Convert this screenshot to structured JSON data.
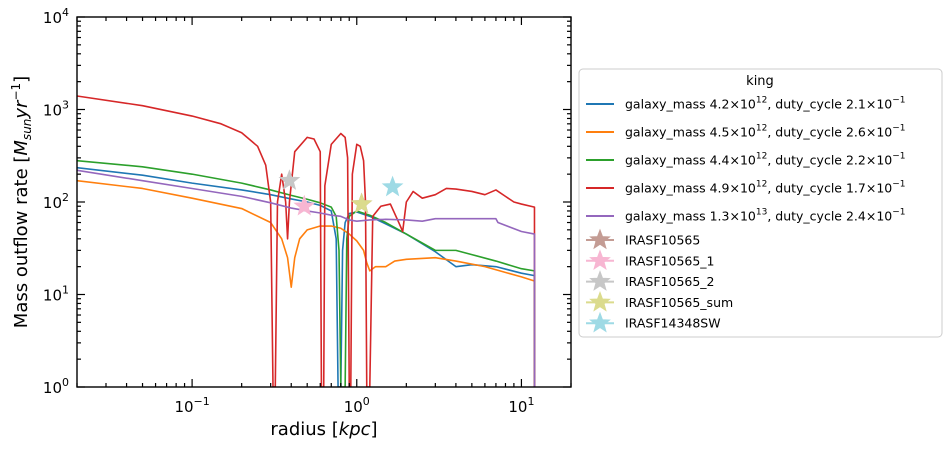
{
  "chart_data": {
    "type": "line",
    "xlabel": "radius [kpc]",
    "ylabel": "Mass outflow rate [M_sun yr^-1]",
    "xscale": "log",
    "yscale": "log",
    "xlim": [
      0.02,
      20
    ],
    "ylim": [
      1,
      10000
    ],
    "x_ticks": [
      {
        "value": 0.1,
        "base": "10",
        "exp": "−1"
      },
      {
        "value": 1,
        "base": "10",
        "exp": "0"
      },
      {
        "value": 10,
        "base": "10",
        "exp": "1"
      }
    ],
    "y_ticks": [
      {
        "value": 1,
        "base": "10",
        "exp": "0"
      },
      {
        "value": 10,
        "base": "10",
        "exp": "1"
      },
      {
        "value": 100,
        "base": "10",
        "exp": "2"
      },
      {
        "value": 1000,
        "base": "10",
        "exp": "3"
      },
      {
        "value": 10000,
        "base": "10",
        "exp": "4"
      }
    ],
    "grid": false,
    "legend_position": "right, outside plot",
    "legend_title": "king",
    "series": [
      {
        "label_main": "galaxy_mass 4.2×10",
        "label_exp1": "12",
        "label_mid": ", duty_cycle 2.1×10",
        "label_exp2": "−1",
        "color": "#1f77b4",
        "points": [
          [
            0.02,
            235
          ],
          [
            0.05,
            195
          ],
          [
            0.1,
            160
          ],
          [
            0.2,
            135
          ],
          [
            0.3,
            120
          ],
          [
            0.4,
            108
          ],
          [
            0.5,
            100
          ],
          [
            0.6,
            92
          ],
          [
            0.7,
            80
          ],
          [
            0.75,
            40
          ],
          [
            0.77,
            1
          ],
          [
            0.8,
            1
          ],
          [
            0.82,
            30
          ],
          [
            0.85,
            60
          ],
          [
            0.9,
            75
          ],
          [
            1.0,
            78
          ],
          [
            1.2,
            70
          ],
          [
            1.5,
            58
          ],
          [
            2.0,
            45
          ],
          [
            3.0,
            29
          ],
          [
            4.0,
            20
          ],
          [
            5.0,
            21
          ],
          [
            7.0,
            20
          ],
          [
            10.0,
            17
          ],
          [
            12.0,
            16
          ],
          [
            12.01,
            1
          ]
        ]
      },
      {
        "label_main": "galaxy_mass 4.5×10",
        "label_exp1": "12",
        "label_mid": ", duty_cycle 2.6×10",
        "label_exp2": "−1",
        "color": "#ff7f0e",
        "points": [
          [
            0.02,
            170
          ],
          [
            0.05,
            140
          ],
          [
            0.1,
            110
          ],
          [
            0.2,
            85
          ],
          [
            0.3,
            60
          ],
          [
            0.35,
            40
          ],
          [
            0.38,
            25
          ],
          [
            0.4,
            12
          ],
          [
            0.42,
            25
          ],
          [
            0.45,
            40
          ],
          [
            0.5,
            50
          ],
          [
            0.6,
            55
          ],
          [
            0.7,
            55
          ],
          [
            0.8,
            52
          ],
          [
            0.9,
            45
          ],
          [
            1.0,
            38
          ],
          [
            1.1,
            30
          ],
          [
            1.15,
            22
          ],
          [
            1.2,
            18
          ],
          [
            1.3,
            20
          ],
          [
            1.5,
            20
          ],
          [
            1.7,
            23
          ],
          [
            2.0,
            24
          ],
          [
            3.0,
            25
          ],
          [
            4.0,
            23
          ],
          [
            6.0,
            20
          ],
          [
            10.0,
            15.5
          ],
          [
            12.0,
            14
          ],
          [
            12.01,
            1
          ]
        ]
      },
      {
        "label_main": "galaxy_mass 4.4×10",
        "label_exp1": "12",
        "label_mid": ", duty_cycle 2.2×10",
        "label_exp2": "−1",
        "color": "#2ca02c",
        "points": [
          [
            0.02,
            280
          ],
          [
            0.05,
            240
          ],
          [
            0.1,
            200
          ],
          [
            0.2,
            160
          ],
          [
            0.3,
            135
          ],
          [
            0.4,
            118
          ],
          [
            0.5,
            107
          ],
          [
            0.6,
            98
          ],
          [
            0.7,
            88
          ],
          [
            0.75,
            70
          ],
          [
            0.78,
            30
          ],
          [
            0.8,
            1
          ],
          [
            0.85,
            1
          ],
          [
            0.87,
            40
          ],
          [
            0.9,
            70
          ],
          [
            1.0,
            80
          ],
          [
            1.2,
            72
          ],
          [
            1.5,
            60
          ],
          [
            2.0,
            45
          ],
          [
            3.0,
            30
          ],
          [
            4.0,
            30
          ],
          [
            5.0,
            27
          ],
          [
            7.0,
            23
          ],
          [
            10.0,
            19
          ],
          [
            12.0,
            18
          ],
          [
            12.01,
            1
          ]
        ]
      },
      {
        "label_main": "galaxy_mass 4.9×10",
        "label_exp1": "12",
        "label_mid": ", duty_cycle 1.7×10",
        "label_exp2": "−1",
        "color": "#d62728",
        "points": [
          [
            0.02,
            1400
          ],
          [
            0.05,
            1100
          ],
          [
            0.1,
            850
          ],
          [
            0.15,
            700
          ],
          [
            0.2,
            560
          ],
          [
            0.25,
            400
          ],
          [
            0.28,
            250
          ],
          [
            0.3,
            100
          ],
          [
            0.31,
            1
          ],
          [
            0.32,
            1
          ],
          [
            0.33,
            100
          ],
          [
            0.35,
            200
          ],
          [
            0.37,
            100
          ],
          [
            0.38,
            40
          ],
          [
            0.39,
            100
          ],
          [
            0.42,
            350
          ],
          [
            0.5,
            500
          ],
          [
            0.55,
            480
          ],
          [
            0.6,
            350
          ],
          [
            0.61,
            1
          ],
          [
            0.63,
            1
          ],
          [
            0.64,
            150
          ],
          [
            0.7,
            420
          ],
          [
            0.8,
            550
          ],
          [
            0.85,
            500
          ],
          [
            0.88,
            300
          ],
          [
            0.9,
            1
          ],
          [
            0.92,
            1
          ],
          [
            0.94,
            200
          ],
          [
            1.0,
            420
          ],
          [
            1.05,
            400
          ],
          [
            1.1,
            280
          ],
          [
            1.13,
            100
          ],
          [
            1.15,
            1
          ],
          [
            1.2,
            1
          ],
          [
            1.25,
            70
          ],
          [
            1.4,
            90
          ],
          [
            1.6,
            95
          ],
          [
            1.8,
            60
          ],
          [
            1.9,
            48
          ],
          [
            2.0,
            100
          ],
          [
            2.2,
            130
          ],
          [
            2.5,
            110
          ],
          [
            3.0,
            120
          ],
          [
            3.5,
            140
          ],
          [
            4.0,
            138
          ],
          [
            5.0,
            130
          ],
          [
            6.0,
            120
          ],
          [
            7.0,
            135
          ],
          [
            8.0,
            115
          ],
          [
            9.0,
            100
          ],
          [
            10.0,
            95
          ],
          [
            12.0,
            88
          ],
          [
            12.01,
            1
          ]
        ]
      },
      {
        "label_main": "galaxy_mass 1.3×10",
        "label_exp1": "13",
        "label_mid": ", duty_cycle 2.4×10",
        "label_exp2": "−1",
        "color": "#9467bd",
        "points": [
          [
            0.02,
            220
          ],
          [
            0.05,
            170
          ],
          [
            0.1,
            140
          ],
          [
            0.2,
            115
          ],
          [
            0.3,
            98
          ],
          [
            0.4,
            86
          ],
          [
            0.5,
            80
          ],
          [
            0.6,
            76
          ],
          [
            0.7,
            72
          ],
          [
            0.8,
            70
          ],
          [
            0.9,
            64
          ],
          [
            1.0,
            62
          ],
          [
            1.2,
            64
          ],
          [
            1.5,
            65
          ],
          [
            2.0,
            64
          ],
          [
            2.5,
            62
          ],
          [
            3.0,
            66
          ],
          [
            5.0,
            66
          ],
          [
            7.0,
            66
          ],
          [
            7.2,
            60
          ],
          [
            10.0,
            48
          ],
          [
            12.0,
            45
          ],
          [
            12.01,
            1
          ]
        ]
      }
    ],
    "markers": [
      {
        "label": "IRASF10565",
        "color": "#c49c94",
        "x": 1.07,
        "y": 95
      },
      {
        "label": "IRASF10565_1",
        "color": "#f7b6d2",
        "x": 0.48,
        "y": 90
      },
      {
        "label": "IRASF10565_2",
        "color": "#c7c7c7",
        "x": 0.39,
        "y": 170
      },
      {
        "label": "IRASF10565_sum",
        "color": "#dbdb8d",
        "x": 1.07,
        "y": 95
      },
      {
        "label": "IRASF14348SW",
        "color": "#9edae5",
        "x": 1.65,
        "y": 145
      }
    ]
  }
}
